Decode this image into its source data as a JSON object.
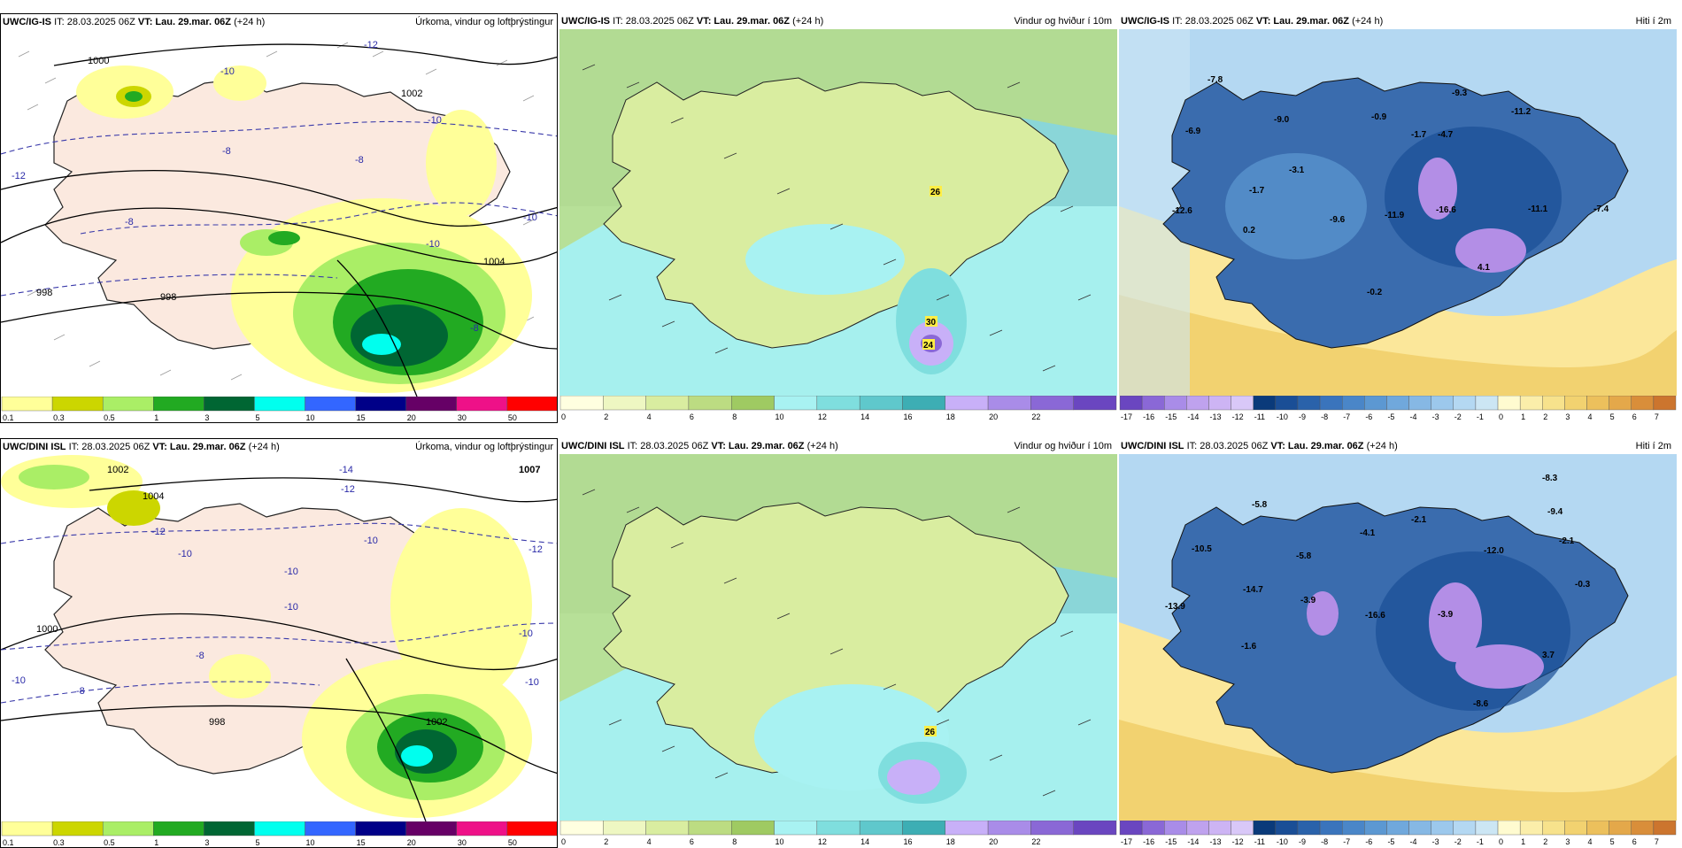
{
  "rows": [
    {
      "model": "UWC/IG-IS",
      "it": "IT: 28.03.2025 06Z",
      "vt_label": "VT:",
      "vt_value": "Lau. 29.mar. 06Z",
      "lead": "(+24 h)",
      "panels": {
        "precip": {
          "title": "Úrkoma, vindur og loftþrýstingur",
          "isobars": [
            "1000",
            "1002",
            "1004",
            "998",
            "998"
          ],
          "temps": [
            "-12",
            "-10",
            "-8",
            "-10",
            "-8",
            "-10",
            "-8",
            "-12",
            "-8",
            "-10"
          ],
          "pressure_marker": ""
        },
        "wind": {
          "title": "Vindur og hviður í 10m",
          "gusts": [
            "26",
            "30",
            "24"
          ]
        },
        "temp": {
          "title": "Hiti í 2m",
          "values": [
            "-7.8",
            "-6.9",
            "-9.0",
            "-3.1",
            "-1.7",
            "-0.9",
            "-4.7",
            "-1.7",
            "-9.3",
            "-11.2",
            "-12.6",
            "-9.6",
            "-11.9",
            "-16.6",
            "-11.1",
            "-7.4",
            "0.2",
            "4.1",
            "-0.2"
          ]
        }
      }
    },
    {
      "model": "UWC/DINI ISL",
      "it": "IT: 28.03.2025 06Z",
      "vt_label": "VT:",
      "vt_value": "Lau. 29.mar. 06Z",
      "lead": "(+24 h)",
      "panels": {
        "precip": {
          "title": "Úrkoma, vindur og loftþrýstingur",
          "isobars": [
            "1002",
            "1000",
            "998",
            "1002",
            "1004"
          ],
          "temps": [
            "-14",
            "-12",
            "-10",
            "-12",
            "-10",
            "-10",
            "-8",
            "-8",
            "-10",
            "-10",
            "-12",
            "-10",
            "-10"
          ],
          "pressure_marker": "1007"
        },
        "wind": {
          "title": "Vindur og hviður í 10m",
          "gusts": [
            "26"
          ]
        },
        "temp": {
          "title": "Hiti í 2m",
          "values": [
            "-8.3",
            "-5.8",
            "-9.4",
            "-10.5",
            "-2.1",
            "-4.1",
            "-5.8",
            "-12.0",
            "-2.1",
            "-14.7",
            "-3.9",
            "-16.6",
            "-3.9",
            "-13.9",
            "-0.3",
            "-1.6",
            "3.7",
            "-8.6"
          ]
        }
      }
    }
  ],
  "colorbars": {
    "precip": {
      "ticks": [
        "0.1",
        "0.3",
        "0.5",
        "1",
        "3",
        "5",
        "10",
        "15",
        "20",
        "30",
        "50"
      ],
      "colors": [
        "#ffff99",
        "#ccd600",
        "#aaee66",
        "#22aa22",
        "#006633",
        "#00ffee",
        "#3366ff",
        "#000088",
        "#660066",
        "#ee1188",
        "#ff0000"
      ]
    },
    "wind": {
      "ticks": [
        "0",
        "2",
        "4",
        "6",
        "8",
        "10",
        "12",
        "14",
        "16",
        "18",
        "20",
        "22"
      ],
      "colors": [
        "#ffffe0",
        "#eef7c2",
        "#d9eda0",
        "#bcdc82",
        "#9fca62",
        "#a8f2f2",
        "#7fdede",
        "#5fc8cc",
        "#3daeb4",
        "#c8b0f8",
        "#a98ce8",
        "#8a68d6",
        "#6a46c0"
      ]
    },
    "temp": {
      "ticks": [
        "-17",
        "-16",
        "-15",
        "-14",
        "-13",
        "-12",
        "-11",
        "-10",
        "-9",
        "-8",
        "-7",
        "-6",
        "-5",
        "-4",
        "-3",
        "-2",
        "-1",
        "0",
        "1",
        "2",
        "3",
        "4",
        "5",
        "6",
        "7"
      ],
      "colors": [
        "#6a46c0",
        "#8a68d6",
        "#a98ce8",
        "#bfa2ee",
        "#cdb4f4",
        "#d9c8f8",
        "#0a3a7a",
        "#1a4e96",
        "#2a62aa",
        "#3a74bc",
        "#4a86c8",
        "#5c98d2",
        "#70a8dc",
        "#86b8e4",
        "#9cc8ec",
        "#b4d8f2",
        "#cce6f4",
        "#fffbd0",
        "#fbeeaa",
        "#f7e28c",
        "#f2d270",
        "#ecc05c",
        "#e4a84a",
        "#d98e3a",
        "#cc752e"
      ]
    }
  },
  "colors": {
    "land_precip": "#fbe9df",
    "sea_precip": "#ffffff",
    "isobar": "#000000",
    "isotherm": "#3a3aaa",
    "wind_sea": "#a6f0ee",
    "wind_land": "#a8cc6a",
    "temp_land": "#3a6cae",
    "temp_sea": "#fbe79a",
    "temp_cold": "#b38ee6"
  }
}
